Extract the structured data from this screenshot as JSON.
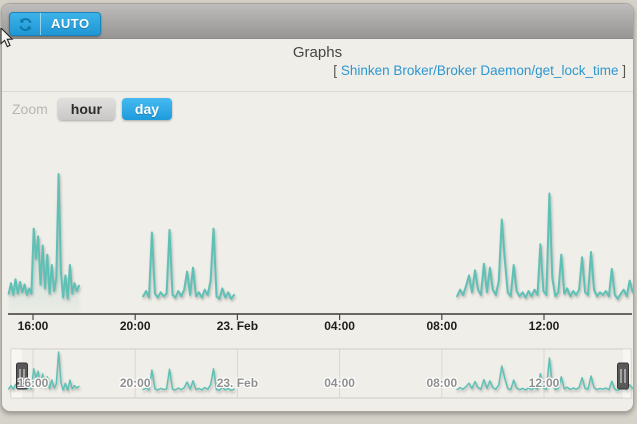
{
  "toolbar": {
    "auto_button": {
      "label": "AUTO",
      "icon": "refresh-icon",
      "color": "#2aa7e0"
    }
  },
  "header": {
    "title": "Graphs",
    "subtitle_open": "[",
    "subtitle": "Shinken Broker/Broker Daemon/get_lock_time",
    "subtitle_close": "]",
    "subtitle_color": "#2d97cf"
  },
  "zoom": {
    "label": "Zoom",
    "options": [
      {
        "label": "hour",
        "active": false
      },
      {
        "label": "day",
        "active": true
      }
    ]
  },
  "colors": {
    "series": "#5ec1b5",
    "accent_blue": "#2aa7e0",
    "axis_line": "#3a3a3a",
    "nav_grid": "#dbd8d1",
    "background": "#f0eee8"
  },
  "chart_data": {
    "type": "line",
    "title": "Graphs",
    "subtitle": "Shinken Broker/Broker Daemon/get_lock_time",
    "series_name": "get_lock_time",
    "series_color": "#5ec1b5",
    "legend": "off",
    "grid": "off",
    "x_axis": {
      "type": "datetime",
      "ticks": [
        {
          "label": "16:00",
          "hour": 16
        },
        {
          "label": "20:00",
          "hour": 20
        },
        {
          "label": "23. Feb",
          "hour": 24
        },
        {
          "label": "04:00",
          "hour": 28
        },
        {
          "label": "08:00",
          "hour": 32
        },
        {
          "label": "12:00",
          "hour": 36
        }
      ],
      "range_hours": [
        15.05,
        39.5
      ],
      "note": "hours measured from 00:00 of 22 Feb; 24 = midnight 23. Feb"
    },
    "y_axis": {
      "visible": false,
      "units": "relative",
      "range": [
        0,
        100
      ]
    },
    "series": [
      {
        "name": "get_lock_time",
        "segments": [
          {
            "start_hour": 15.05,
            "end_hour": 17.8,
            "values": [
              8,
              16,
              7,
              19,
              8,
              17,
              9,
              15,
              7,
              12,
              8,
              58,
              35,
              52,
              15,
              45,
              12,
              38,
              8,
              30,
              10,
              20,
              100,
              25,
              5,
              22,
              4,
              30,
              8,
              16,
              10,
              14
            ]
          },
          {
            "start_hour": 20.31,
            "end_hour": 23.87,
            "values": [
              6,
              10,
              5,
              55,
              8,
              5,
              9,
              6,
              8,
              57,
              7,
              5,
              10,
              6,
              11,
              25,
              7,
              28,
              6,
              9,
              5,
              11,
              7,
              18,
              58,
              6,
              4,
              12,
              5,
              9,
              4,
              7
            ]
          },
          {
            "start_hour": 32.6,
            "end_hour": 39.47,
            "values": [
              6,
              11,
              7,
              14,
              22,
              9,
              26,
              11,
              7,
              31,
              9,
              28,
              11,
              7,
              18,
              65,
              35,
              9,
              6,
              30,
              10,
              6,
              9,
              5,
              10,
              6,
              11,
              7,
              46,
              10,
              7,
              85,
              20,
              6,
              9,
              38,
              8,
              12,
              6,
              10,
              7,
              11,
              36,
              9,
              7,
              40,
              11,
              6,
              9,
              7,
              10,
              6,
              27,
              7,
              4,
              8,
              11,
              6,
              18,
              9
            ]
          }
        ]
      }
    ],
    "navigator": {
      "present": true,
      "selected_range": "full",
      "tick_labels": [
        "16:00",
        "20:00",
        "23. Feb",
        "04:00",
        "08:00",
        "12:00"
      ],
      "handles": 2
    }
  }
}
